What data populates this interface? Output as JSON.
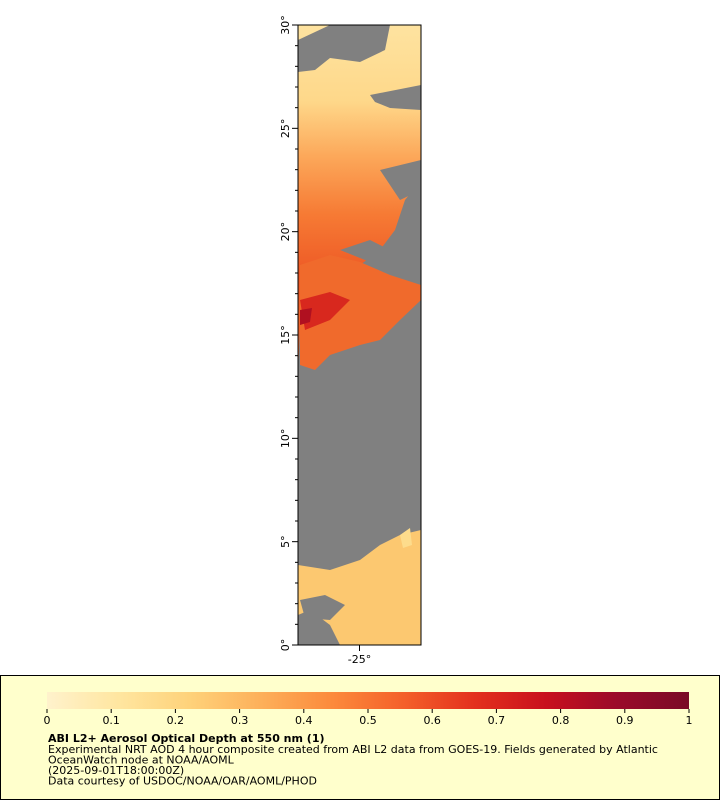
{
  "map": {
    "lat_range": [
      0,
      30
    ],
    "lon_range": [
      -28,
      -22
    ],
    "lat_ticks": [
      {
        "value": 0,
        "label": "0°"
      },
      {
        "value": 5,
        "label": "5°"
      },
      {
        "value": 10,
        "label": "10°"
      },
      {
        "value": 15,
        "label": "15°"
      },
      {
        "value": 20,
        "label": "20°"
      },
      {
        "value": 25,
        "label": "25°"
      },
      {
        "value": 30,
        "label": "30°"
      }
    ],
    "lat_minor_ticks": [
      1,
      2,
      3,
      4,
      6,
      7,
      8,
      9,
      11,
      12,
      13,
      14,
      16,
      17,
      18,
      19,
      21,
      22,
      23,
      24,
      26,
      27,
      28,
      29
    ],
    "lon_ticks": [
      {
        "value": -25,
        "label": "-25°"
      }
    ]
  },
  "legend": {
    "range": [
      0,
      1
    ],
    "ticks": [
      0,
      0.1,
      0.2,
      0.3,
      0.4,
      0.5,
      0.6,
      0.7,
      0.8,
      0.9,
      1
    ],
    "colors": [
      "#fff2cc",
      "#ffe6a0",
      "#fed27a",
      "#fdb05a",
      "#fc8a3c",
      "#f4602a",
      "#e3301e",
      "#c8101e",
      "#9a0a2a",
      "#7a0a26"
    ],
    "title": "ABI L2+ Aerosol Optical Depth at 550 nm (1)",
    "lines": [
      "Experimental NRT AOD 4 hour composite created from ABI L2 data from GOES-19. Fields generated by Atlantic",
      "OceanWatch node at NOAA/AOML",
      "(2025-09-01T18:00:00Z)",
      "Data courtesy of USDOC/NOAA/OAR/AOML/PHOD"
    ]
  }
}
